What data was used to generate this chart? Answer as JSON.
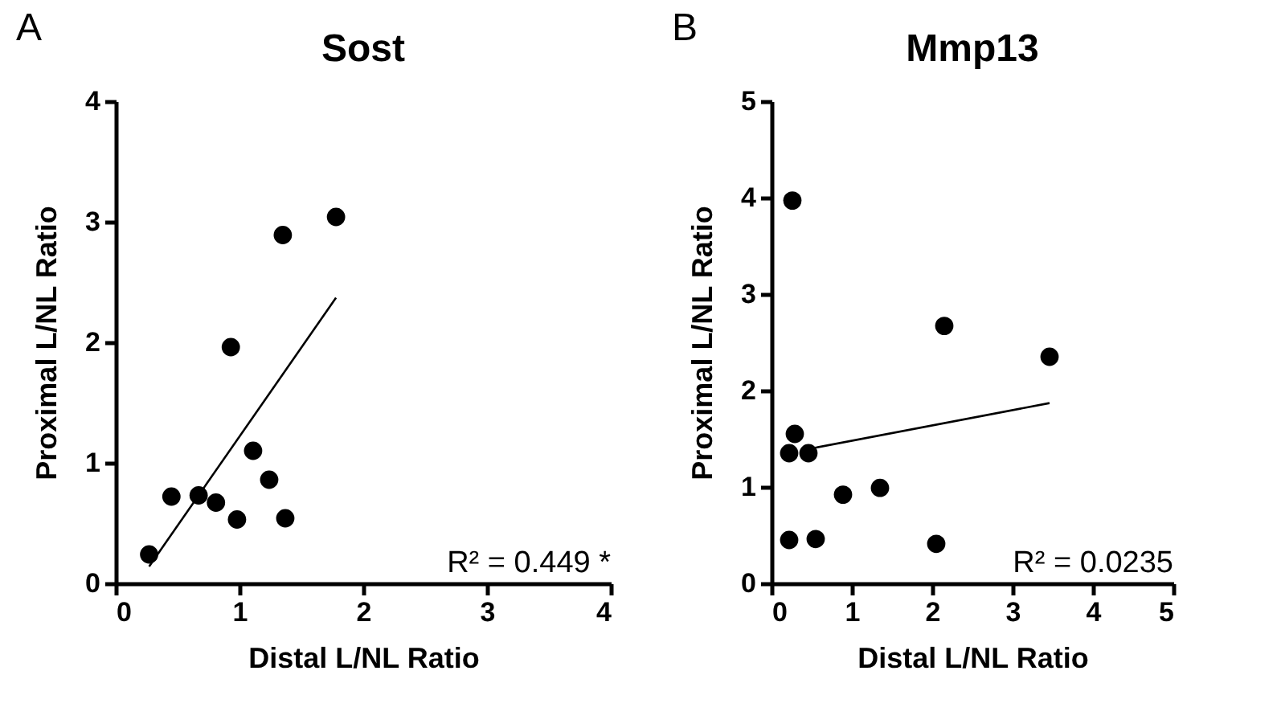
{
  "chart_data": [
    {
      "type": "scatter",
      "title": "Sost",
      "xlabel": "Distal L/NL Ratio",
      "ylabel": "Proximal L/NL Ratio",
      "xlim": [
        0,
        4
      ],
      "ylim": [
        0,
        4
      ],
      "xticks": [
        0,
        1,
        2,
        3,
        4
      ],
      "yticks": [
        0,
        1,
        2,
        3,
        4
      ],
      "annotations": [
        "A",
        "R² = 0.449 *"
      ],
      "series": [
        {
          "type": "scatter",
          "marker": "circle",
          "color": "#000000",
          "x": [
            0.27,
            0.45,
            0.67,
            0.81,
            0.98,
            0.93,
            1.11,
            1.24,
            1.37,
            1.35,
            1.78
          ],
          "values": [
            0.24,
            0.72,
            0.73,
            0.67,
            0.53,
            1.96,
            1.1,
            0.86,
            0.54,
            2.89,
            3.04
          ]
        },
        {
          "type": "line",
          "color": "#000000",
          "x": [
            0.27,
            1.78
          ],
          "values": [
            0.14,
            2.37
          ]
        }
      ]
    },
    {
      "type": "scatter",
      "title": "Mmp13",
      "xlabel": "Distal L/NL Ratio",
      "ylabel": "Proximal L/NL Ratio",
      "xlim": [
        0,
        5
      ],
      "ylim": [
        0,
        5
      ],
      "xticks": [
        0,
        1,
        2,
        3,
        4,
        5
      ],
      "yticks": [
        0,
        1,
        2,
        3,
        4,
        5
      ],
      "annotations": [
        "B",
        "R² = 0.0235"
      ],
      "series": [
        {
          "type": "scatter",
          "marker": "circle",
          "color": "#000000",
          "x": [
            0.26,
            0.29,
            0.22,
            0.46,
            0.22,
            0.55,
            0.89,
            1.35,
            2.15,
            2.05,
            3.46
          ],
          "values": [
            3.97,
            1.55,
            1.35,
            1.35,
            0.45,
            0.46,
            0.92,
            0.99,
            2.67,
            0.41,
            2.35
          ]
        },
        {
          "type": "line",
          "color": "#000000",
          "x": [
            0.5,
            3.46
          ],
          "values": [
            1.4,
            1.87
          ]
        }
      ]
    }
  ]
}
